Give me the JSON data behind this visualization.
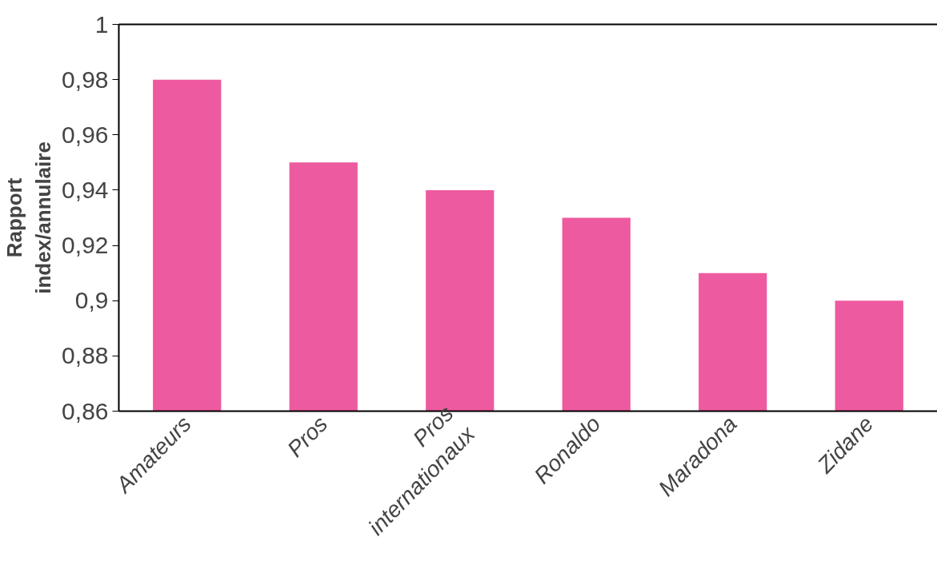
{
  "chart_data": {
    "type": "bar",
    "ylabel": "Rapport\nindex/annulaire",
    "categories": [
      "Amateurs",
      "Pros",
      "Pros\ninternationaux",
      "Ronaldo",
      "Maradona",
      "Zidane"
    ],
    "values": [
      0.98,
      0.95,
      0.94,
      0.93,
      0.91,
      0.9
    ],
    "color": "#ee5a9f",
    "ylim": [
      0.86,
      1
    ],
    "yticks": [
      {
        "value": 0.86,
        "label": "0,86"
      },
      {
        "value": 0.88,
        "label": "0,88"
      },
      {
        "value": 0.9,
        "label": "0,9"
      },
      {
        "value": 0.92,
        "label": "0,92"
      },
      {
        "value": 0.94,
        "label": "0,94"
      },
      {
        "value": 0.96,
        "label": "0,96"
      },
      {
        "value": 0.98,
        "label": "0,98"
      },
      1
    ],
    "grid": false
  }
}
